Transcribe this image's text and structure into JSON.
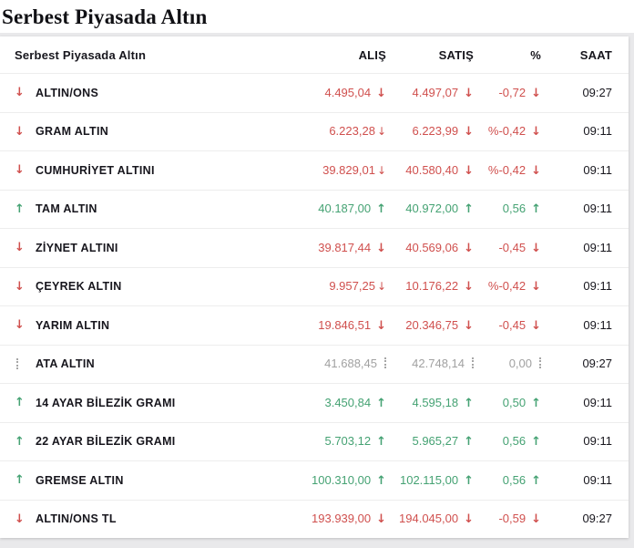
{
  "page": {
    "title": "Serbest Piyasada Altın"
  },
  "colors": {
    "up": "#45a273",
    "down": "#d0504e",
    "flat": "#a6a6a6"
  },
  "icons": {
    "up": "↑",
    "down": "↓",
    "down-thin": "↓",
    "flat": "dotted-vertical-bar"
  },
  "table": {
    "header": {
      "name": "Serbest Piyasada Altın",
      "alis": "ALIŞ",
      "satis": "SATIŞ",
      "pct": "%",
      "saat": "SAAT"
    },
    "rows": [
      {
        "name": "ALTIN/ONS",
        "dir": "down",
        "alis": "4.495,04",
        "alis_dir": "down",
        "satis": "4.497,07",
        "satis_dir": "down",
        "pct": "-0,72",
        "pct_dir": "down",
        "saat": "09:27"
      },
      {
        "name": "GRAM ALTIN",
        "dir": "down",
        "alis": "6.223,28",
        "alis_dir": "down-thin",
        "satis": "6.223,99",
        "satis_dir": "down",
        "pct": "%-0,42",
        "pct_dir": "down",
        "saat": "09:11"
      },
      {
        "name": "CUMHURİYET ALTINI",
        "dir": "down",
        "alis": "39.829,01",
        "alis_dir": "down-thin",
        "satis": "40.580,40",
        "satis_dir": "down",
        "pct": "%-0,42",
        "pct_dir": "down",
        "saat": "09:11"
      },
      {
        "name": "TAM ALTIN",
        "dir": "up",
        "alis": "40.187,00",
        "alis_dir": "up",
        "satis": "40.972,00",
        "satis_dir": "up",
        "pct": "0,56",
        "pct_dir": "up",
        "saat": "09:11"
      },
      {
        "name": "ZİYNET ALTINI",
        "dir": "down",
        "alis": "39.817,44",
        "alis_dir": "down",
        "satis": "40.569,06",
        "satis_dir": "down",
        "pct": "-0,45",
        "pct_dir": "down",
        "saat": "09:11"
      },
      {
        "name": "ÇEYREK ALTIN",
        "dir": "down",
        "alis": "9.957,25",
        "alis_dir": "down-thin",
        "satis": "10.176,22",
        "satis_dir": "down",
        "pct": "%-0,42",
        "pct_dir": "down",
        "saat": "09:11"
      },
      {
        "name": "YARIM ALTIN",
        "dir": "down",
        "alis": "19.846,51",
        "alis_dir": "down",
        "satis": "20.346,75",
        "satis_dir": "down",
        "pct": "-0,45",
        "pct_dir": "down",
        "saat": "09:11"
      },
      {
        "name": "ATA ALTIN",
        "dir": "flat",
        "alis": "41.688,45",
        "alis_dir": "flat",
        "satis": "42.748,14",
        "satis_dir": "flat",
        "pct": "0,00",
        "pct_dir": "flat",
        "saat": "09:27"
      },
      {
        "name": "14 AYAR BİLEZİK GRAMI",
        "dir": "up",
        "alis": "3.450,84",
        "alis_dir": "up",
        "satis": "4.595,18",
        "satis_dir": "up",
        "pct": "0,50",
        "pct_dir": "up",
        "saat": "09:11"
      },
      {
        "name": "22 AYAR BİLEZİK GRAMI",
        "dir": "up",
        "alis": "5.703,12",
        "alis_dir": "up",
        "satis": "5.965,27",
        "satis_dir": "up",
        "pct": "0,56",
        "pct_dir": "up",
        "saat": "09:11"
      },
      {
        "name": "GREMSE ALTIN",
        "dir": "up",
        "alis": "100.310,00",
        "alis_dir": "up",
        "satis": "102.115,00",
        "satis_dir": "up",
        "pct": "0,56",
        "pct_dir": "up",
        "saat": "09:11"
      },
      {
        "name": "ALTIN/ONS TL",
        "dir": "down",
        "alis": "193.939,00",
        "alis_dir": "down",
        "satis": "194.045,00",
        "satis_dir": "down",
        "pct": "-0,59",
        "pct_dir": "down",
        "saat": "09:27"
      }
    ]
  }
}
